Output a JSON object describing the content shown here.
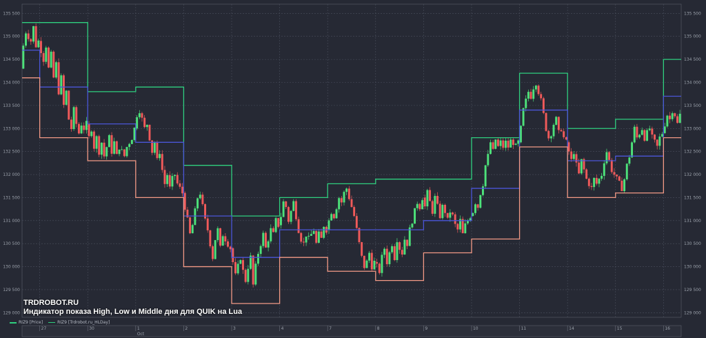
{
  "colors": {
    "background": "#262934",
    "grid": "#4a4f5c",
    "candle_up": "#4de27a",
    "candle_down": "#f05a5a",
    "high_line": "#2fd07f",
    "low_line": "#f39a86",
    "middle_line": "#4b56d8",
    "text": "#9aa0aa"
  },
  "watermark": {
    "brand": "TRDROBOT.RU",
    "title": "Индикатор показа High, Low и Middle дня для QUIK на Lua"
  },
  "legend": [
    {
      "label": "RIZ9 [Price]",
      "color": "#2fd07f"
    },
    {
      "label": "RIZ9 [Trdrobot.ru_HLDay]",
      "color": "#2fd07f"
    }
  ],
  "chart_data": {
    "type": "candlestick",
    "title": "",
    "xlabel": "",
    "ylabel": "",
    "ylim": [
      128900,
      135700
    ],
    "yticks": [
      129000,
      129500,
      130000,
      130500,
      131000,
      131500,
      132000,
      132500,
      133000,
      133500,
      134000,
      134500,
      135000,
      135500
    ],
    "ytick_labels": [
      "129 000",
      "129 500",
      "130 000",
      "130 500",
      "131 000",
      "131 500",
      "132 000",
      "132 500",
      "133 000",
      "133 500",
      "134 000",
      "134 500",
      "135 000",
      "135 500"
    ],
    "x_labels": [
      {
        "text": "27",
        "bar": 7
      },
      {
        "text": "30",
        "bar": 26
      },
      {
        "text": "1",
        "bar": 45
      },
      {
        "text": "Oct",
        "bar": 45,
        "row": 2
      },
      {
        "text": "2",
        "bar": 64
      },
      {
        "text": "3",
        "bar": 83
      },
      {
        "text": "4",
        "bar": 102
      },
      {
        "text": "7",
        "bar": 121
      },
      {
        "text": "8",
        "bar": 140
      },
      {
        "text": "9",
        "bar": 159
      },
      {
        "text": "10",
        "bar": 178
      },
      {
        "text": "11",
        "bar": 197
      },
      {
        "text": "14",
        "bar": 216
      },
      {
        "text": "15",
        "bar": 235
      },
      {
        "text": "16",
        "bar": 254
      }
    ],
    "bar_count": 261,
    "days": [
      {
        "start": 0,
        "end": 7,
        "high": 135300,
        "mid": 134700,
        "low": 134100,
        "path": [
          134300,
          134800,
          135100,
          135000,
          134900,
          135200,
          134800,
          134900
        ]
      },
      {
        "start": 7,
        "end": 26,
        "high": 135300,
        "mid": 133900,
        "low": 132800,
        "path": [
          134900,
          134700,
          134500,
          134800,
          134300,
          134600,
          134100,
          134400,
          133800,
          134100,
          133500,
          133800,
          133200,
          133000,
          133400,
          133100,
          132900,
          133100,
          133000,
          133100
        ]
      },
      {
        "start": 26,
        "end": 45,
        "high": 133800,
        "mid": 133100,
        "low": 132300,
        "path": [
          133100,
          132800,
          133000,
          132600,
          132800,
          132500,
          132700,
          132400,
          132600,
          132800,
          132500,
          132700,
          132400,
          132600,
          132500,
          132400,
          132600,
          132700,
          132800,
          133000
        ]
      },
      {
        "start": 45,
        "end": 64,
        "high": 133900,
        "mid": 132700,
        "low": 131500,
        "path": [
          133000,
          133300,
          133400,
          133200,
          133000,
          133100,
          132800,
          132500,
          132700,
          132300,
          132500,
          132100,
          131800,
          132000,
          131700,
          131900,
          132000,
          131800,
          131700,
          131600
        ]
      },
      {
        "start": 64,
        "end": 83,
        "high": 132200,
        "mid": 131100,
        "low": 130000,
        "path": [
          131600,
          131300,
          131000,
          130700,
          130900,
          131200,
          131500,
          131600,
          131300,
          131000,
          130800,
          130500,
          130200,
          130600,
          130800,
          130400,
          130700,
          130600,
          130500,
          130400
        ]
      },
      {
        "start": 83,
        "end": 102,
        "high": 131100,
        "mid": 130200,
        "low": 129200,
        "path": [
          130400,
          130100,
          129800,
          130000,
          130200,
          129900,
          129700,
          130000,
          130200,
          129600,
          130000,
          130300,
          130500,
          130700,
          130400,
          130600,
          130800,
          130700,
          131000,
          130900
        ]
      },
      {
        "start": 102,
        "end": 121,
        "high": 131500,
        "mid": 130800,
        "low": 130200,
        "path": [
          130900,
          131100,
          131400,
          131300,
          131000,
          131200,
          131400,
          131100,
          130800,
          130600,
          130500,
          130700,
          130600,
          130700,
          130800,
          130500,
          130700,
          130600,
          130900,
          130800
        ]
      },
      {
        "start": 121,
        "end": 140,
        "high": 131800,
        "mid": 130800,
        "low": 129900,
        "path": [
          130800,
          131000,
          131200,
          131100,
          131300,
          131500,
          131400,
          131600,
          131700,
          131500,
          131300,
          131100,
          130800,
          130500,
          130200,
          130000,
          130100,
          130300,
          130000,
          130100
        ]
      },
      {
        "start": 140,
        "end": 159,
        "high": 131900,
        "mid": 130800,
        "low": 129700,
        "path": [
          130100,
          130000,
          129900,
          130200,
          130400,
          130100,
          130300,
          130500,
          130200,
          130600,
          130400,
          130300,
          130600,
          130500,
          130800,
          131000,
          131200,
          131400,
          131300,
          131500
        ]
      },
      {
        "start": 159,
        "end": 178,
        "high": 131900,
        "mid": 131000,
        "low": 130300,
        "path": [
          131500,
          131300,
          131600,
          131400,
          131200,
          131500,
          131300,
          131100,
          131300,
          131200,
          131000,
          131200,
          131100,
          130900,
          130800,
          131000,
          130700,
          130900,
          131000,
          131100
        ]
      },
      {
        "start": 178,
        "end": 197,
        "high": 132800,
        "mid": 131700,
        "low": 130600,
        "path": [
          131100,
          131200,
          131400,
          131300,
          131600,
          131800,
          132200,
          132400,
          132700,
          132500,
          132800,
          132600,
          132700,
          132600,
          132700,
          132600,
          132800,
          132700,
          132600,
          132700
        ]
      },
      {
        "start": 197,
        "end": 216,
        "high": 134200,
        "mid": 133400,
        "low": 132600,
        "path": [
          132700,
          133000,
          133400,
          133600,
          133800,
          133700,
          133900,
          134000,
          133800,
          133600,
          133300,
          133000,
          132800,
          132900,
          133100,
          133200,
          132900,
          133000,
          132800,
          132700
        ]
      },
      {
        "start": 216,
        "end": 235,
        "high": 133000,
        "mid": 132300,
        "low": 131500,
        "path": [
          132700,
          132500,
          132300,
          132500,
          132200,
          132000,
          132300,
          132100,
          131900,
          131800,
          131700,
          131900,
          131800,
          131900,
          132000,
          132300,
          132500,
          132300,
          132100,
          132000
        ]
      },
      {
        "start": 235,
        "end": 254,
        "high": 133200,
        "mid": 132400,
        "low": 131600,
        "path": [
          132000,
          131900,
          131800,
          131700,
          131900,
          132200,
          132400,
          132700,
          133000,
          132800,
          132900,
          133000,
          132800,
          132900,
          133000,
          132800,
          132700,
          132600,
          132800,
          132900
        ]
      },
      {
        "start": 254,
        "end": 261,
        "high": 134500,
        "mid": 133700,
        "low": 132800,
        "path": [
          132900,
          133100,
          133300,
          133200,
          133400,
          133300,
          133100,
          133300
        ]
      }
    ]
  }
}
